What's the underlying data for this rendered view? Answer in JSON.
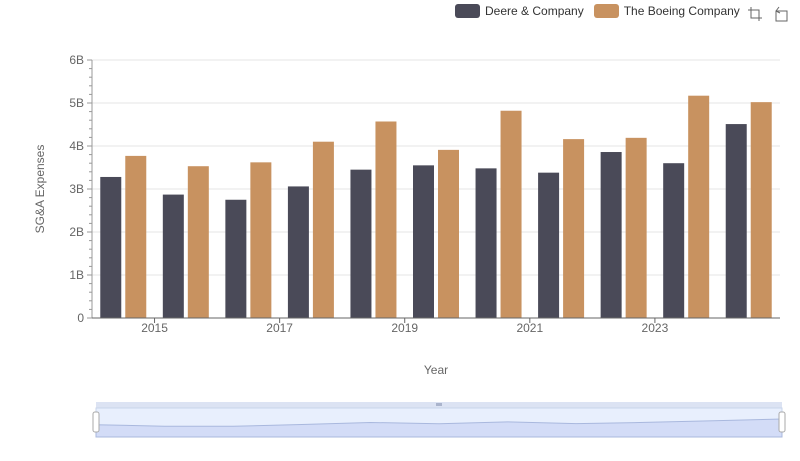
{
  "chart_data": {
    "type": "bar",
    "xlabel": "Year",
    "ylabel": "SG&A Expenses",
    "x": [
      2014,
      2015,
      2016,
      2017,
      2018,
      2019,
      2020,
      2021,
      2022,
      2023,
      2024
    ],
    "x_tick_labels": [
      "2015",
      "2017",
      "2019",
      "2021",
      "2023"
    ],
    "y_tick_labels": [
      "0",
      "1B",
      "2B",
      "3B",
      "4B",
      "5B",
      "6B"
    ],
    "ylim": [
      0,
      6000000000
    ],
    "grid": true,
    "legend_position": "top-right",
    "series": [
      {
        "name": "Deere & Company",
        "color": "#4a4a58",
        "values": [
          3280000000,
          2870000000,
          2750000000,
          3060000000,
          3450000000,
          3550000000,
          3480000000,
          3380000000,
          3860000000,
          3600000000,
          4510000000
        ]
      },
      {
        "name": "The Boeing Company",
        "color": "#c89260",
        "values": [
          3770000000,
          3530000000,
          3620000000,
          4100000000,
          4570000000,
          3910000000,
          4820000000,
          4160000000,
          4190000000,
          5170000000,
          5020000000
        ]
      }
    ]
  },
  "toolbox": {
    "icons": [
      "zoom-icon",
      "restore-icon"
    ]
  },
  "datazoom": {
    "start": 0,
    "end": 100
  }
}
